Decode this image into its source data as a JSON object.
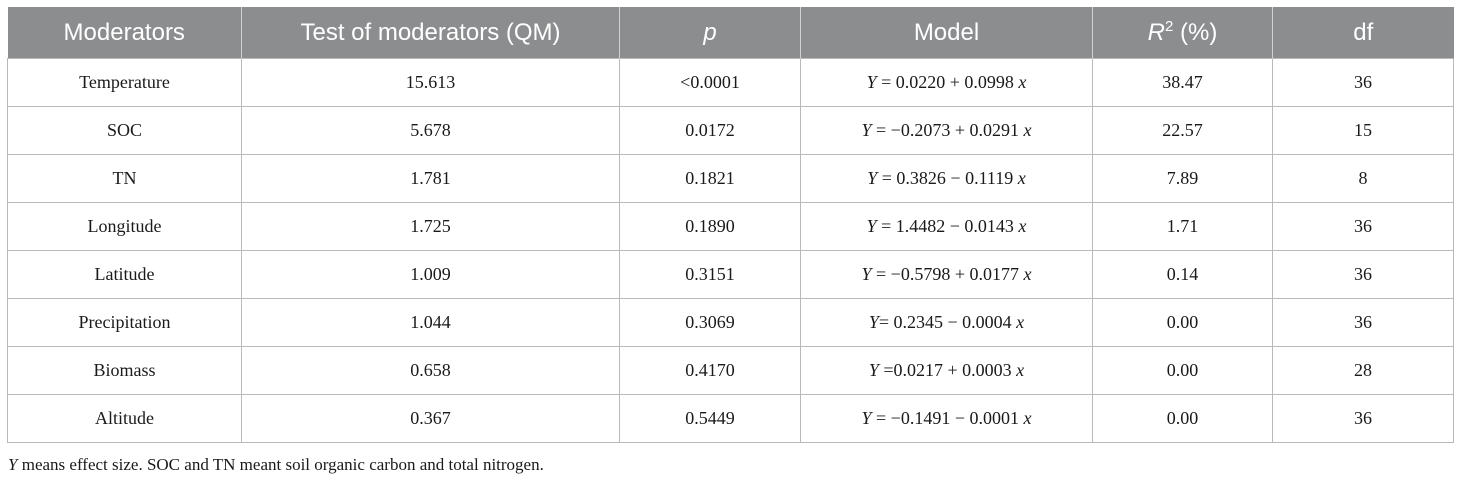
{
  "table": {
    "headers": {
      "moderators": "Moderators",
      "qm": "Test of moderators (QM)",
      "p": "p",
      "model": "Model",
      "r2_base": "R",
      "r2_sup": "2",
      "r2_unit": " (%)",
      "df": "df"
    },
    "rows": [
      {
        "moderator": "Temperature",
        "qm": "15.613",
        "p": "<0.0001",
        "model_y": "Y",
        "model_eq": " = 0.0220 + 0.0998 ",
        "model_x": "x",
        "r2": "38.47",
        "df": "36"
      },
      {
        "moderator": "SOC",
        "qm": "5.678",
        "p": "0.0172",
        "model_y": "Y",
        "model_eq": " = −0.2073 + 0.0291 ",
        "model_x": "x",
        "r2": "22.57",
        "df": "15"
      },
      {
        "moderator": "TN",
        "qm": "1.781",
        "p": "0.1821",
        "model_y": "Y",
        "model_eq": " = 0.3826 − 0.1119 ",
        "model_x": "x",
        "r2": "7.89",
        "df": "8"
      },
      {
        "moderator": "Longitude",
        "qm": "1.725",
        "p": "0.1890",
        "model_y": "Y",
        "model_eq": " = 1.4482 − 0.0143 ",
        "model_x": "x",
        "r2": "1.71",
        "df": "36"
      },
      {
        "moderator": "Latitude",
        "qm": "1.009",
        "p": "0.3151",
        "model_y": "Y",
        "model_eq": " = −0.5798 + 0.0177 ",
        "model_x": "x",
        "r2": "0.14",
        "df": "36"
      },
      {
        "moderator": "Precipitation",
        "qm": "1.044",
        "p": "0.3069",
        "model_y": "Y",
        "model_eq": "= 0.2345 − 0.0004 ",
        "model_x": "x",
        "r2": "0.00",
        "df": "36"
      },
      {
        "moderator": "Biomass",
        "qm": "0.658",
        "p": "0.4170",
        "model_y": "Y",
        "model_eq": " =0.0217 + 0.0003 ",
        "model_x": "x",
        "r2": "0.00",
        "df": "28"
      },
      {
        "moderator": "Altitude",
        "qm": "0.367",
        "p": "0.5449",
        "model_y": "Y",
        "model_eq": " = −0.1491 − 0.0001 ",
        "model_x": "x",
        "r2": "0.00",
        "df": "36"
      }
    ]
  },
  "footnote": {
    "y_symbol": "Y",
    "text": " means effect size. SOC and TN meant soil organic carbon and total nitrogen."
  }
}
